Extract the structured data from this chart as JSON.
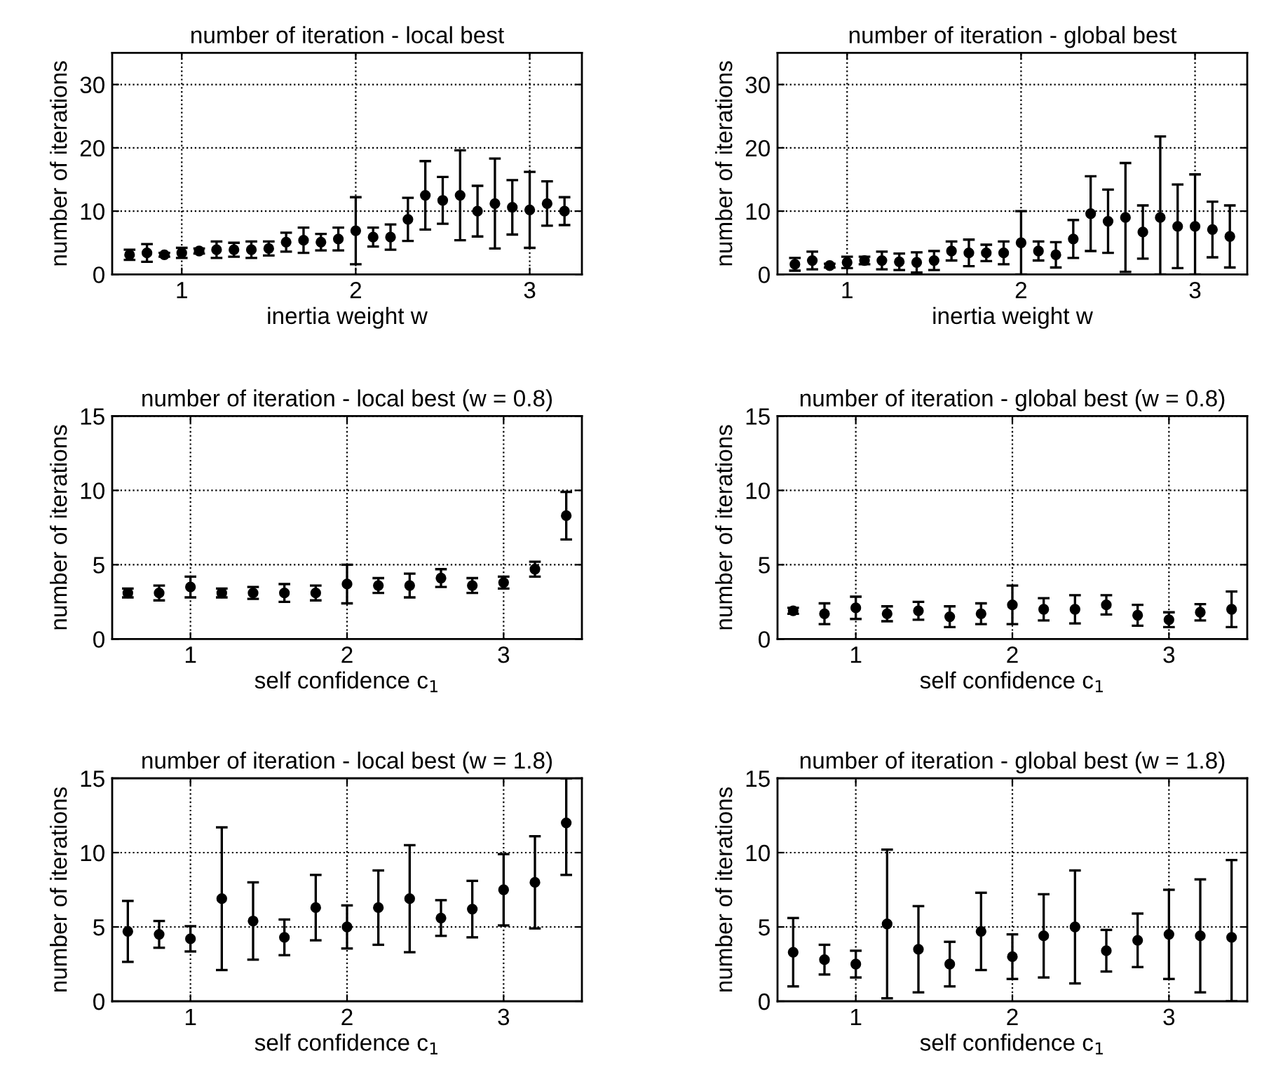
{
  "chart_data": [
    {
      "type": "scatter",
      "title": "number of iteration - local best",
      "xlabel": "inertia weight w",
      "ylabel": "number of iterations",
      "xlim": [
        0.6,
        3.3
      ],
      "ylim": [
        0,
        35
      ],
      "xticks": [
        1,
        2,
        3
      ],
      "yticks": [
        0,
        10,
        20,
        30
      ],
      "grid": true,
      "marker": "circle",
      "color": "#000000",
      "x": [
        0.7,
        0.8,
        0.9,
        1.0,
        1.1,
        1.2,
        1.3,
        1.4,
        1.5,
        1.6,
        1.7,
        1.8,
        1.9,
        2.0,
        2.1,
        2.2,
        2.3,
        2.4,
        2.5,
        2.6,
        2.7,
        2.8,
        2.9,
        3.0,
        3.1,
        3.2
      ],
      "values": [
        3.1,
        3.4,
        3.1,
        3.4,
        3.7,
        3.9,
        3.9,
        3.9,
        4.1,
        5.1,
        5.4,
        5.1,
        5.6,
        6.9,
        5.9,
        5.9,
        8.7,
        12.5,
        11.7,
        12.5,
        10.0,
        11.2,
        10.6,
        10.2,
        11.2,
        10.0
      ],
      "errors": [
        0.8,
        1.4,
        0.3,
        0.8,
        0.4,
        1.3,
        1.1,
        1.3,
        1.1,
        1.5,
        2.0,
        1.3,
        1.8,
        5.3,
        1.5,
        2.0,
        3.4,
        5.4,
        3.7,
        7.1,
        4.0,
        7.1,
        4.3,
        6.0,
        3.5,
        2.2
      ]
    },
    {
      "type": "scatter",
      "title": "number of iteration - global best",
      "xlabel": "inertia weight w",
      "ylabel": "number of iterations",
      "xlim": [
        0.6,
        3.3
      ],
      "ylim": [
        0,
        35
      ],
      "xticks": [
        1,
        2,
        3
      ],
      "yticks": [
        0,
        10,
        20,
        30
      ],
      "grid": true,
      "marker": "circle",
      "color": "#000000",
      "x": [
        0.7,
        0.8,
        0.9,
        1.0,
        1.1,
        1.2,
        1.3,
        1.4,
        1.5,
        1.6,
        1.7,
        1.8,
        1.9,
        2.0,
        2.1,
        2.2,
        2.3,
        2.4,
        2.5,
        2.6,
        2.7,
        2.8,
        2.9,
        3.0,
        3.1,
        3.2
      ],
      "values": [
        1.6,
        2.2,
        1.4,
        1.9,
        2.2,
        2.2,
        2.0,
        1.9,
        2.2,
        3.7,
        3.4,
        3.4,
        3.4,
        5.0,
        3.7,
        3.1,
        5.6,
        9.6,
        8.4,
        9.0,
        6.7,
        9.0,
        7.6,
        7.6,
        7.1,
        6.0
      ],
      "errors": [
        1.0,
        1.4,
        0.3,
        0.9,
        0.6,
        1.4,
        1.3,
        1.6,
        1.5,
        1.5,
        2.1,
        1.3,
        1.8,
        5.0,
        1.5,
        2.0,
        3.0,
        5.9,
        5.0,
        8.6,
        4.2,
        [
          0,
          21.8
        ],
        6.6,
        [
          0,
          15.8
        ],
        4.4,
        4.9
      ]
    },
    {
      "type": "scatter",
      "title": "number of iteration - local best (w = 0.8)",
      "xlabel": "self confidence c$_{1}$",
      "ylabel": "number of iterations",
      "xlim": [
        0.5,
        3.5
      ],
      "ylim": [
        0,
        15
      ],
      "xticks": [
        1,
        2,
        3
      ],
      "yticks": [
        0,
        5,
        10,
        15
      ],
      "grid": true,
      "marker": "circle",
      "color": "#000000",
      "x": [
        0.6,
        0.8,
        1.0,
        1.2,
        1.4,
        1.6,
        1.8,
        2.0,
        2.2,
        2.4,
        2.6,
        2.8,
        3.0,
        3.2,
        3.4
      ],
      "values": [
        3.1,
        3.1,
        3.5,
        3.1,
        3.1,
        3.1,
        3.1,
        3.7,
        3.6,
        3.6,
        4.1,
        3.6,
        3.8,
        4.7,
        8.3
      ],
      "errors": [
        0.3,
        0.5,
        0.7,
        0.3,
        0.4,
        0.6,
        0.5,
        1.3,
        0.5,
        0.8,
        0.6,
        0.5,
        0.4,
        0.5,
        1.6
      ]
    },
    {
      "type": "scatter",
      "title": "number of iteration - global best (w = 0.8)",
      "xlabel": "self confidence c$_{1}$",
      "ylabel": "number of iterations",
      "xlim": [
        0.5,
        3.5
      ],
      "ylim": [
        0,
        15
      ],
      "xticks": [
        1,
        2,
        3
      ],
      "yticks": [
        0,
        5,
        10,
        15
      ],
      "grid": true,
      "marker": "circle",
      "color": "#000000",
      "x": [
        0.6,
        0.8,
        1.0,
        1.2,
        1.4,
        1.6,
        1.8,
        2.0,
        2.2,
        2.4,
        2.6,
        2.8,
        3.0,
        3.2,
        3.4
      ],
      "values": [
        1.9,
        1.7,
        2.1,
        1.7,
        1.9,
        1.5,
        1.7,
        2.3,
        2.0,
        2.0,
        2.3,
        1.6,
        1.3,
        1.8,
        2.0
      ],
      "errors": [
        0.2,
        0.7,
        0.75,
        0.5,
        0.6,
        0.7,
        0.7,
        1.3,
        0.75,
        0.95,
        0.65,
        0.7,
        0.5,
        0.55,
        1.2
      ]
    },
    {
      "type": "scatter",
      "title": "number of iteration - local best (w = 1.8)",
      "xlabel": "self confidence c$_{1}$",
      "ylabel": "number of iterations",
      "xlim": [
        0.5,
        3.5
      ],
      "ylim": [
        0,
        15
      ],
      "xticks": [
        1,
        2,
        3
      ],
      "yticks": [
        0,
        5,
        10,
        15
      ],
      "grid": true,
      "marker": "circle",
      "color": "#000000",
      "x": [
        0.6,
        0.8,
        1.0,
        1.2,
        1.4,
        1.6,
        1.8,
        2.0,
        2.2,
        2.4,
        2.6,
        2.8,
        3.0,
        3.2,
        3.4
      ],
      "values": [
        4.7,
        4.5,
        4.2,
        6.9,
        5.4,
        4.3,
        6.3,
        5.0,
        6.3,
        6.9,
        5.6,
        6.2,
        7.5,
        8.0,
        12.0
      ],
      "errors": [
        2.05,
        0.9,
        0.85,
        4.8,
        2.6,
        1.2,
        2.2,
        1.45,
        2.5,
        3.6,
        1.2,
        1.9,
        2.4,
        3.1,
        [
          8.5,
          15
        ]
      ]
    },
    {
      "type": "scatter",
      "title": "number of iteration - global best (w = 1.8)",
      "xlabel": "self confidence c$_{1}$",
      "ylabel": "number of iterations",
      "xlim": [
        0.5,
        3.5
      ],
      "ylim": [
        0,
        15
      ],
      "xticks": [
        1,
        2,
        3
      ],
      "yticks": [
        0,
        5,
        10,
        15
      ],
      "grid": true,
      "marker": "circle",
      "color": "#000000",
      "x": [
        0.6,
        0.8,
        1.0,
        1.2,
        1.4,
        1.6,
        1.8,
        2.0,
        2.2,
        2.4,
        2.6,
        2.8,
        3.0,
        3.2,
        3.4
      ],
      "values": [
        3.3,
        2.8,
        2.5,
        5.2,
        3.5,
        2.5,
        4.7,
        3.0,
        4.4,
        5.0,
        3.4,
        4.1,
        4.5,
        4.4,
        4.3
      ],
      "errors": [
        2.3,
        1.0,
        0.9,
        5.0,
        2.9,
        1.5,
        2.6,
        1.5,
        2.8,
        3.8,
        1.4,
        1.8,
        3.0,
        3.8,
        [
          0,
          9.5
        ]
      ]
    }
  ]
}
